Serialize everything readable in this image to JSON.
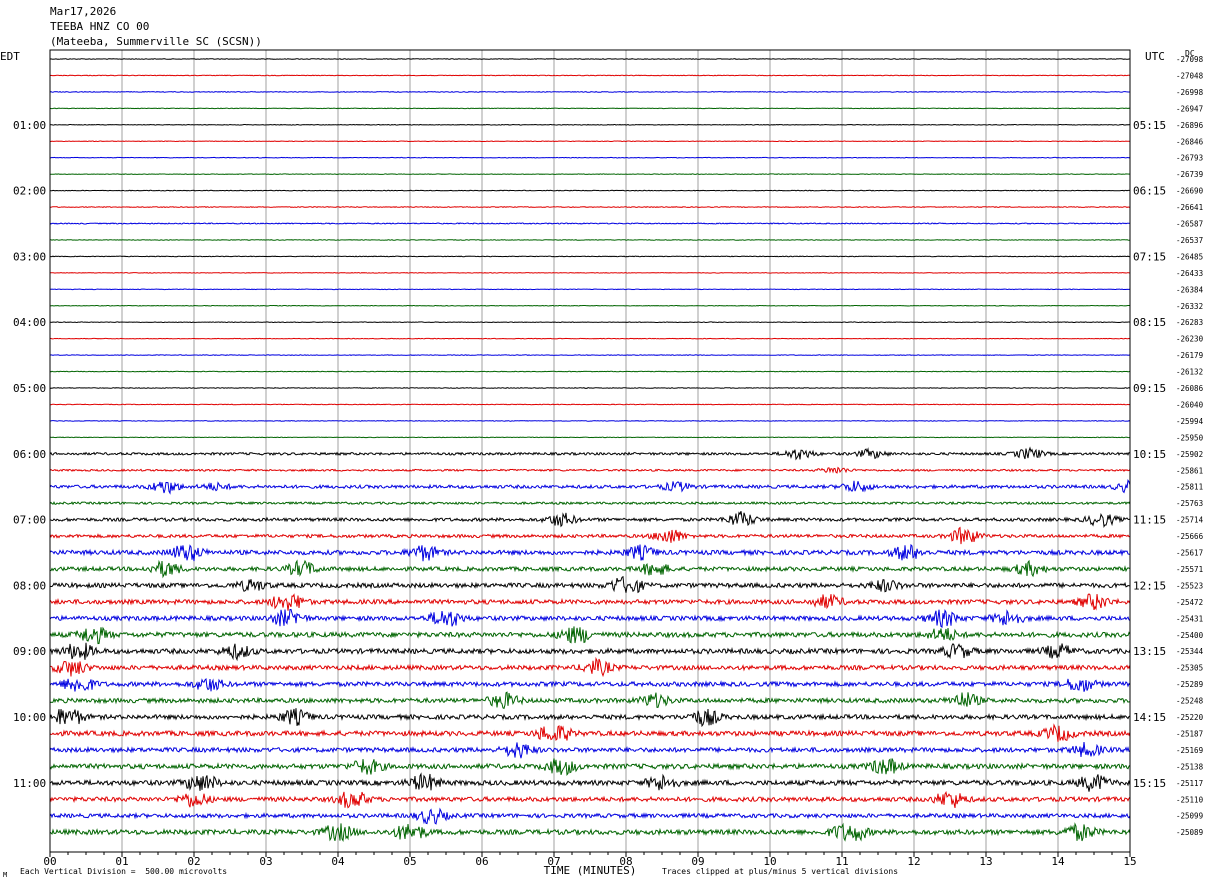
{
  "header": {
    "date": "Mar17,2026",
    "station": "TEEBA HNZ CO 00",
    "location": "(Mateeba, Summerville SC (SCSN))"
  },
  "footer": {
    "corner_mark": "M",
    "scale_note": "Each Vertical Division =  500.00 microvolts",
    "clip_note": "Traces clipped at plus/minus 5 vertical divisions"
  },
  "chart_data": {
    "type": "line",
    "title": "",
    "xlabel": "TIME (MINUTES)",
    "xlim": [
      0,
      15
    ],
    "x_ticks": [
      "00",
      "01",
      "02",
      "03",
      "04",
      "05",
      "06",
      "07",
      "08",
      "09",
      "10",
      "11",
      "12",
      "13",
      "14",
      "15"
    ],
    "left_axis_label": "EDT",
    "right_axis_label": "UTC",
    "right_corner_label": "DC",
    "left_hour_labels": [
      "01:00",
      "02:00",
      "03:00",
      "04:00",
      "05:00",
      "06:00",
      "07:00",
      "08:00",
      "09:00",
      "10:00",
      "11:00"
    ],
    "right_hour_labels": [
      "05:15",
      "06:15",
      "07:15",
      "08:15",
      "09:15",
      "10:15",
      "11:15",
      "12:15",
      "13:15",
      "14:15",
      "15:15"
    ],
    "trace_colors": [
      "#000000",
      "#e00000",
      "#0000e0",
      "#006400"
    ],
    "dc_offsets": [
      -27098,
      -27048,
      -26998,
      -26947,
      -26896,
      -26846,
      -26793,
      -26739,
      -26690,
      -26641,
      -26587,
      -26537,
      -26485,
      -26433,
      -26384,
      -26332,
      -26283,
      -26230,
      -26179,
      -26132,
      -26086,
      -26040,
      -25994,
      -25950,
      -25902,
      -25861,
      -25811,
      -25763,
      -25714,
      -25666,
      -25617,
      -25571,
      -25523,
      -25472,
      -25431,
      -25400,
      -25344,
      -25305,
      -25289,
      -25248,
      -25220,
      -25187,
      -25169,
      -25138,
      -25117,
      -25110,
      -25099,
      -25089
    ],
    "activity_levels": [
      0.3,
      0.3,
      0.35,
      0.3,
      0.3,
      0.3,
      0.3,
      0.3,
      0.3,
      0.4,
      0.5,
      0.3,
      0.3,
      0.3,
      0.3,
      0.3,
      0.3,
      0.3,
      0.3,
      0.3,
      0.3,
      0.3,
      0.3,
      0.3,
      1.2,
      0.9,
      1.6,
      1.1,
      1.6,
      1.6,
      2.2,
      2.0,
      2.2,
      2.2,
      2.2,
      2.4,
      2.4,
      2.2,
      2.2,
      2.2,
      2.2,
      2.4,
      2.2,
      2.4,
      2.4,
      2.2,
      2.0,
      2.4
    ],
    "bursts": [
      {
        "trace": 24,
        "minute": 10.4,
        "size": 5
      },
      {
        "trace": 24,
        "minute": 11.4,
        "size": 4
      },
      {
        "trace": 24,
        "minute": 13.6,
        "size": 5
      },
      {
        "trace": 25,
        "minute": 10.9,
        "size": 3
      },
      {
        "trace": 26,
        "minute": 1.6,
        "size": 6
      },
      {
        "trace": 26,
        "minute": 2.3,
        "size": 3
      },
      {
        "trace": 26,
        "minute": 8.7,
        "size": 4
      },
      {
        "trace": 26,
        "minute": 11.2,
        "size": 5
      },
      {
        "trace": 26,
        "minute": 15,
        "size": 5
      },
      {
        "trace": 28,
        "minute": 7.1,
        "size": 6
      },
      {
        "trace": 28,
        "minute": 9.6,
        "size": 7
      },
      {
        "trace": 28,
        "minute": 14.6,
        "size": 6
      },
      {
        "trace": 29,
        "minute": 8.6,
        "size": 7
      },
      {
        "trace": 29,
        "minute": 12.7,
        "size": 8
      },
      {
        "trace": 30,
        "minute": 1.9,
        "size": 9
      },
      {
        "trace": 30,
        "minute": 5.2,
        "size": 7
      },
      {
        "trace": 30,
        "minute": 8.2,
        "size": 6
      },
      {
        "trace": 30,
        "minute": 11.9,
        "size": 7
      },
      {
        "trace": 31,
        "minute": 1.6,
        "size": 7
      },
      {
        "trace": 31,
        "minute": 3.5,
        "size": 7
      },
      {
        "trace": 31,
        "minute": 8.4,
        "size": 6
      },
      {
        "trace": 31,
        "minute": 13.6,
        "size": 6
      },
      {
        "trace": 32,
        "minute": 2.8,
        "size": 5
      },
      {
        "trace": 32,
        "minute": 8.0,
        "size": 11
      },
      {
        "trace": 32,
        "minute": 11.6,
        "size": 5
      },
      {
        "trace": 33,
        "minute": 3.3,
        "size": 11
      },
      {
        "trace": 33,
        "minute": 10.8,
        "size": 6
      },
      {
        "trace": 33,
        "minute": 14.5,
        "size": 7
      },
      {
        "trace": 34,
        "minute": 3.3,
        "size": 9
      },
      {
        "trace": 34,
        "minute": 5.5,
        "size": 10
      },
      {
        "trace": 34,
        "minute": 12.4,
        "size": 8
      },
      {
        "trace": 34,
        "minute": 13.3,
        "size": 7
      },
      {
        "trace": 35,
        "minute": 0.6,
        "size": 8
      },
      {
        "trace": 35,
        "minute": 7.3,
        "size": 9
      },
      {
        "trace": 35,
        "minute": 12.4,
        "size": 6
      },
      {
        "trace": 36,
        "minute": 0.4,
        "size": 8
      },
      {
        "trace": 36,
        "minute": 2.6,
        "size": 6
      },
      {
        "trace": 36,
        "minute": 12.6,
        "size": 6
      },
      {
        "trace": 36,
        "minute": 14.0,
        "size": 6
      },
      {
        "trace": 37,
        "minute": 0.3,
        "size": 8
      },
      {
        "trace": 37,
        "minute": 7.6,
        "size": 7
      },
      {
        "trace": 38,
        "minute": 0.4,
        "size": 9
      },
      {
        "trace": 38,
        "minute": 2.2,
        "size": 6
      },
      {
        "trace": 38,
        "minute": 14.3,
        "size": 7
      },
      {
        "trace": 39,
        "minute": 6.3,
        "size": 7
      },
      {
        "trace": 39,
        "minute": 8.4,
        "size": 6
      },
      {
        "trace": 39,
        "minute": 12.7,
        "size": 7
      },
      {
        "trace": 40,
        "minute": 0.25,
        "size": 10
      },
      {
        "trace": 40,
        "minute": 3.4,
        "size": 7
      },
      {
        "trace": 40,
        "minute": 9.1,
        "size": 8
      },
      {
        "trace": 41,
        "minute": 7.0,
        "size": 12
      },
      {
        "trace": 41,
        "minute": 14.0,
        "size": 7
      },
      {
        "trace": 42,
        "minute": 6.5,
        "size": 7
      },
      {
        "trace": 42,
        "minute": 14.4,
        "size": 6
      },
      {
        "trace": 43,
        "minute": 4.4,
        "size": 7
      },
      {
        "trace": 43,
        "minute": 7.1,
        "size": 8
      },
      {
        "trace": 43,
        "minute": 11.6,
        "size": 8
      },
      {
        "trace": 44,
        "minute": 2.1,
        "size": 10
      },
      {
        "trace": 44,
        "minute": 5.2,
        "size": 8
      },
      {
        "trace": 44,
        "minute": 8.5,
        "size": 7
      },
      {
        "trace": 44,
        "minute": 14.5,
        "size": 8
      },
      {
        "trace": 45,
        "minute": 2.0,
        "size": 7
      },
      {
        "trace": 45,
        "minute": 4.2,
        "size": 9
      },
      {
        "trace": 45,
        "minute": 12.5,
        "size": 8
      },
      {
        "trace": 46,
        "minute": 5.3,
        "size": 7
      },
      {
        "trace": 47,
        "minute": 4.0,
        "size": 8
      },
      {
        "trace": 47,
        "minute": 5.0,
        "size": 9
      },
      {
        "trace": 47,
        "minute": 11.1,
        "size": 14
      },
      {
        "trace": 47,
        "minute": 14.3,
        "size": 8
      }
    ]
  }
}
